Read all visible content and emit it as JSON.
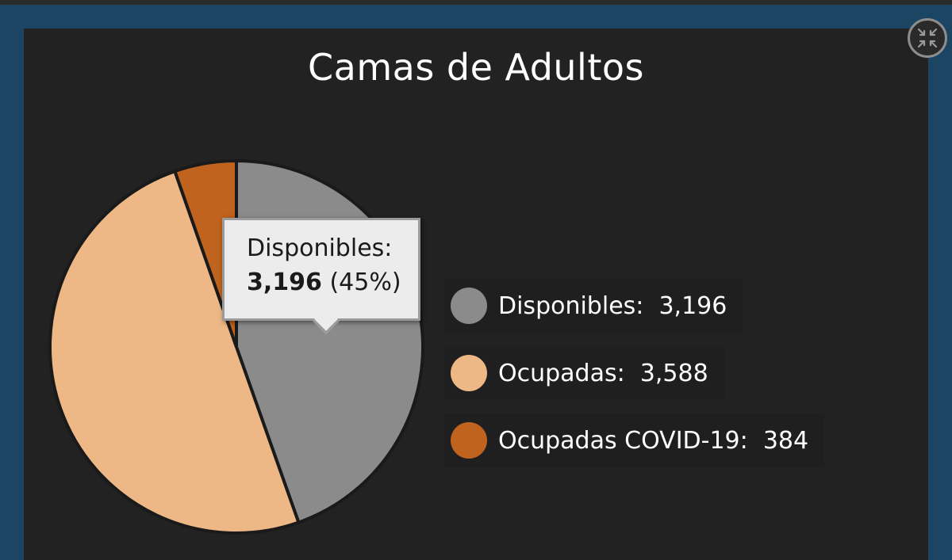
{
  "window": {
    "collapse_icon": "collapse-arrows-icon"
  },
  "chart_data": {
    "type": "pie",
    "title": "Camas de Adultos",
    "slices": [
      {
        "label": "Disponibles",
        "value": 3196,
        "display_value": "3,196",
        "percent": "45%",
        "color": "#8b8b8b"
      },
      {
        "label": "Ocupadas",
        "value": 3588,
        "display_value": "3,588",
        "color": "#eeb886"
      },
      {
        "label": "Ocupadas COVID-19",
        "value": 384,
        "display_value": "384",
        "color": "#c0631e"
      }
    ],
    "legend_placement": "right",
    "tooltip": {
      "label": "Disponibles:",
      "value": "3,196",
      "percent": "(45%)"
    }
  }
}
